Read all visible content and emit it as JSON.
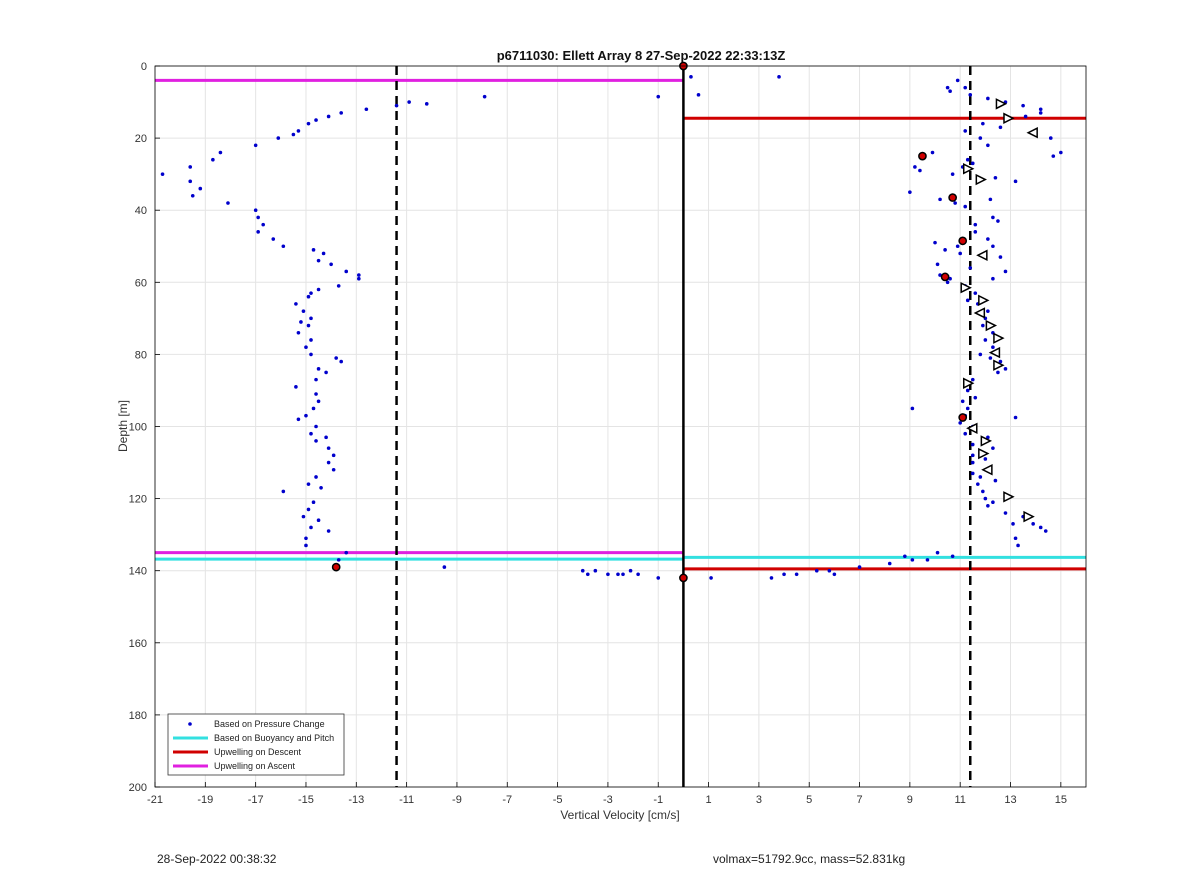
{
  "chart_data": {
    "type": "scatter",
    "title": "p6711030: Ellett Array 8 27-Sep-2022 22:33:13Z",
    "xlabel": "Vertical Velocity [cm/s]",
    "ylabel": "Depth [m]",
    "xlim": [
      -21,
      16
    ],
    "ylim": [
      0,
      200
    ],
    "y_reversed": true,
    "grid": true,
    "xticks": [
      -21,
      -19,
      -17,
      -15,
      -13,
      -11,
      -9,
      -7,
      -5,
      -3,
      -1,
      1,
      3,
      5,
      7,
      9,
      11,
      13,
      15
    ],
    "yticks": [
      0,
      20,
      40,
      60,
      80,
      100,
      120,
      140,
      160,
      180,
      200
    ],
    "legend_position": "bottom-left",
    "legend": [
      {
        "label": "Based on Pressure Change",
        "color": "#0000cc",
        "kind": "dot"
      },
      {
        "label": "Based on Buoyancy and Pitch",
        "color": "#33e0e0",
        "kind": "line"
      },
      {
        "label": "Upwelling on Descent",
        "color": "#d00000",
        "kind": "line"
      },
      {
        "label": "Upwelling on Ascent",
        "color": "#e020e0",
        "kind": "line"
      }
    ],
    "vertical_lines": [
      {
        "x": -11.4,
        "style": "dashed",
        "color": "#000000"
      },
      {
        "x": 0,
        "style": "solid",
        "color": "#000000"
      },
      {
        "x": 11.4,
        "style": "dashed",
        "color": "#000000"
      }
    ],
    "horizontal_lines": [
      {
        "name": "Upwelling on Ascent",
        "y": 4,
        "x_from": -21,
        "x_to": 0,
        "color": "#e020e0"
      },
      {
        "name": "Upwelling on Ascent",
        "y": 135,
        "x_from": -21,
        "x_to": 0,
        "color": "#e020e0"
      },
      {
        "name": "Based on Buoyancy and Pitch",
        "y": 136.8,
        "x_from": -21,
        "x_to": 0,
        "color": "#33e0e0"
      },
      {
        "name": "Based on Buoyancy and Pitch",
        "y": 136.3,
        "x_from": 0,
        "x_to": 16,
        "color": "#33e0e0"
      },
      {
        "name": "Upwelling on Descent",
        "y": 14.5,
        "x_from": 0,
        "x_to": 16,
        "color": "#d00000"
      },
      {
        "name": "Upwelling on Descent",
        "y": 139.5,
        "x_from": 0,
        "x_to": 16,
        "color": "#d00000"
      }
    ],
    "series": [
      {
        "name": "Based on Pressure Change",
        "color": "#0000cc",
        "points": [
          [
            -20.7,
            30
          ],
          [
            -19.6,
            28
          ],
          [
            -19.6,
            32
          ],
          [
            -19.5,
            36
          ],
          [
            -19.2,
            34
          ],
          [
            -18.7,
            26
          ],
          [
            -18.4,
            24
          ],
          [
            -18.1,
            38
          ],
          [
            -17.0,
            22
          ],
          [
            -16.1,
            20
          ],
          [
            -15.5,
            19
          ],
          [
            -15.3,
            18
          ],
          [
            -14.9,
            16
          ],
          [
            -14.6,
            15
          ],
          [
            -14.1,
            14
          ],
          [
            -13.6,
            13
          ],
          [
            -12.6,
            12
          ],
          [
            -11.4,
            11
          ],
          [
            -10.9,
            10
          ],
          [
            -10.2,
            10.5
          ],
          [
            -7.9,
            8.5
          ],
          [
            -1.0,
            8.5
          ],
          [
            0.3,
            3
          ],
          [
            0.6,
            8
          ],
          [
            3.8,
            3
          ],
          [
            -17.0,
            40
          ],
          [
            -16.9,
            42
          ],
          [
            -16.7,
            44
          ],
          [
            -16.9,
            46
          ],
          [
            -16.3,
            48
          ],
          [
            -15.9,
            50
          ],
          [
            -14.7,
            51
          ],
          [
            -14.3,
            52
          ],
          [
            -14.5,
            54
          ],
          [
            -14.0,
            55
          ],
          [
            -13.4,
            57
          ],
          [
            -12.9,
            58
          ],
          [
            -12.9,
            59
          ],
          [
            -13.7,
            61
          ],
          [
            -14.5,
            62
          ],
          [
            -14.8,
            63
          ],
          [
            -14.9,
            64
          ],
          [
            -15.4,
            66
          ],
          [
            -15.1,
            68
          ],
          [
            -14.8,
            70
          ],
          [
            -15.2,
            71
          ],
          [
            -14.9,
            72
          ],
          [
            -15.3,
            74
          ],
          [
            -14.8,
            76
          ],
          [
            -15.0,
            78
          ],
          [
            -14.8,
            80
          ],
          [
            -13.8,
            81
          ],
          [
            -13.6,
            82
          ],
          [
            -14.5,
            84
          ],
          [
            -14.2,
            85
          ],
          [
            -14.6,
            87
          ],
          [
            -15.4,
            89
          ],
          [
            -14.6,
            91
          ],
          [
            -14.5,
            93
          ],
          [
            -14.7,
            95
          ],
          [
            -15.0,
            97
          ],
          [
            -15.3,
            98
          ],
          [
            -14.6,
            100
          ],
          [
            -14.8,
            102
          ],
          [
            -14.2,
            103
          ],
          [
            -14.6,
            104
          ],
          [
            -14.1,
            106
          ],
          [
            -13.9,
            108
          ],
          [
            -14.1,
            110
          ],
          [
            -13.9,
            112
          ],
          [
            -14.6,
            114
          ],
          [
            -14.9,
            116
          ],
          [
            -14.4,
            117
          ],
          [
            -15.9,
            118
          ],
          [
            -14.7,
            121
          ],
          [
            -14.9,
            123
          ],
          [
            -15.1,
            125
          ],
          [
            -14.5,
            126
          ],
          [
            -14.8,
            128
          ],
          [
            -14.1,
            129
          ],
          [
            -15.0,
            131
          ],
          [
            -15.0,
            133
          ],
          [
            -13.4,
            135
          ],
          [
            -13.7,
            137
          ],
          [
            -9.5,
            139
          ],
          [
            -4.0,
            140
          ],
          [
            -3.8,
            141
          ],
          [
            -3.5,
            140
          ],
          [
            -3.0,
            141
          ],
          [
            -2.6,
            141
          ],
          [
            -2.4,
            141
          ],
          [
            -2.1,
            140
          ],
          [
            -1.8,
            141
          ],
          [
            -1.0,
            142
          ],
          [
            1.1,
            142
          ],
          [
            3.5,
            142
          ],
          [
            4.0,
            141
          ],
          [
            4.5,
            141
          ],
          [
            5.3,
            140
          ],
          [
            5.8,
            140
          ],
          [
            6.0,
            141
          ],
          [
            7.0,
            139
          ],
          [
            8.2,
            138
          ],
          [
            8.8,
            136
          ],
          [
            9.1,
            137
          ],
          [
            9.7,
            137
          ],
          [
            10.1,
            135
          ],
          [
            10.7,
            136
          ],
          [
            10.5,
            6
          ],
          [
            10.6,
            7
          ],
          [
            10.9,
            4
          ],
          [
            11.4,
            8
          ],
          [
            11.2,
            6
          ],
          [
            12.1,
            9
          ],
          [
            12.8,
            10
          ],
          [
            13.5,
            11
          ],
          [
            14.2,
            12
          ],
          [
            14.2,
            13
          ],
          [
            13.6,
            14
          ],
          [
            11.9,
            16
          ],
          [
            12.6,
            17
          ],
          [
            14.6,
            20
          ],
          [
            15.0,
            24
          ],
          [
            14.7,
            25
          ],
          [
            9.9,
            24
          ],
          [
            11.2,
            18
          ],
          [
            11.8,
            20
          ],
          [
            12.1,
            22
          ],
          [
            11.3,
            26
          ],
          [
            11.5,
            27
          ],
          [
            11.1,
            28
          ],
          [
            9.2,
            28
          ],
          [
            9.4,
            29
          ],
          [
            10.7,
            30
          ],
          [
            12.4,
            31
          ],
          [
            13.2,
            32
          ],
          [
            9.0,
            35
          ],
          [
            10.2,
            37
          ],
          [
            10.8,
            38
          ],
          [
            12.2,
            37
          ],
          [
            11.2,
            39
          ],
          [
            12.3,
            42
          ],
          [
            12.5,
            43
          ],
          [
            11.6,
            44
          ],
          [
            11.6,
            46
          ],
          [
            12.1,
            48
          ],
          [
            12.3,
            50
          ],
          [
            10.0,
            49
          ],
          [
            10.9,
            50
          ],
          [
            10.4,
            51
          ],
          [
            11.0,
            52
          ],
          [
            12.6,
            53
          ],
          [
            10.1,
            55
          ],
          [
            11.4,
            56
          ],
          [
            12.8,
            57
          ],
          [
            10.2,
            58
          ],
          [
            10.6,
            59
          ],
          [
            10.5,
            60
          ],
          [
            11.2,
            61
          ],
          [
            12.3,
            59
          ],
          [
            11.6,
            63
          ],
          [
            11.3,
            65
          ],
          [
            11.7,
            66
          ],
          [
            12.1,
            68
          ],
          [
            12.0,
            70
          ],
          [
            11.9,
            72
          ],
          [
            12.3,
            74
          ],
          [
            12.0,
            76
          ],
          [
            12.3,
            78
          ],
          [
            11.8,
            80
          ],
          [
            12.2,
            81
          ],
          [
            12.6,
            82
          ],
          [
            12.8,
            84
          ],
          [
            12.5,
            85
          ],
          [
            11.5,
            87
          ],
          [
            11.3,
            90
          ],
          [
            11.6,
            92
          ],
          [
            11.1,
            93
          ],
          [
            11.3,
            95
          ],
          [
            9.1,
            95
          ],
          [
            11.2,
            97
          ],
          [
            11.0,
            99
          ],
          [
            11.5,
            100
          ],
          [
            11.2,
            102
          ],
          [
            12.1,
            103
          ],
          [
            11.5,
            105
          ],
          [
            12.3,
            106
          ],
          [
            11.5,
            108
          ],
          [
            12.0,
            109
          ],
          [
            11.5,
            110
          ],
          [
            11.5,
            113
          ],
          [
            11.8,
            114
          ],
          [
            12.4,
            115
          ],
          [
            11.7,
            116
          ],
          [
            11.9,
            118
          ],
          [
            12.0,
            120
          ],
          [
            12.3,
            121
          ],
          [
            12.1,
            122
          ],
          [
            12.8,
            124
          ],
          [
            13.1,
            127
          ],
          [
            13.5,
            125
          ],
          [
            13.9,
            127
          ],
          [
            14.2,
            128
          ],
          [
            14.4,
            129
          ],
          [
            13.2,
            131
          ],
          [
            13.3,
            133
          ],
          [
            13.2,
            97.5
          ]
        ]
      },
      {
        "name": "Upwelling on Descent markers",
        "color": "#d00000",
        "points": [
          [
            0,
            0
          ],
          [
            9.5,
            25
          ],
          [
            10.7,
            36.5
          ],
          [
            11.1,
            48.5
          ],
          [
            10.4,
            58.5
          ],
          [
            11.1,
            97.5
          ],
          [
            -13.8,
            139
          ],
          [
            0,
            142
          ]
        ]
      },
      {
        "name": "Ascent markers",
        "color": "#ffffff",
        "points": [
          [
            12.6,
            10.5
          ],
          [
            12.9,
            14.5
          ],
          [
            13.9,
            18.5
          ],
          [
            11.3,
            28.5
          ],
          [
            11.8,
            31.5
          ],
          [
            11.9,
            52.5
          ],
          [
            11.2,
            61.5
          ],
          [
            11.9,
            65
          ],
          [
            11.8,
            68.5
          ],
          [
            12.2,
            72
          ],
          [
            12.5,
            75.5
          ],
          [
            12.4,
            79.5
          ],
          [
            12.5,
            83
          ],
          [
            11.3,
            88
          ],
          [
            11.5,
            100.5
          ],
          [
            12.0,
            104
          ],
          [
            11.9,
            107.5
          ],
          [
            12.1,
            112
          ],
          [
            12.9,
            119.5
          ],
          [
            13.7,
            125
          ]
        ]
      }
    ]
  },
  "footer": {
    "timestamp": "28-Sep-2022 00:38:32",
    "info": "volmax=51792.9cc, mass=52.831kg"
  }
}
